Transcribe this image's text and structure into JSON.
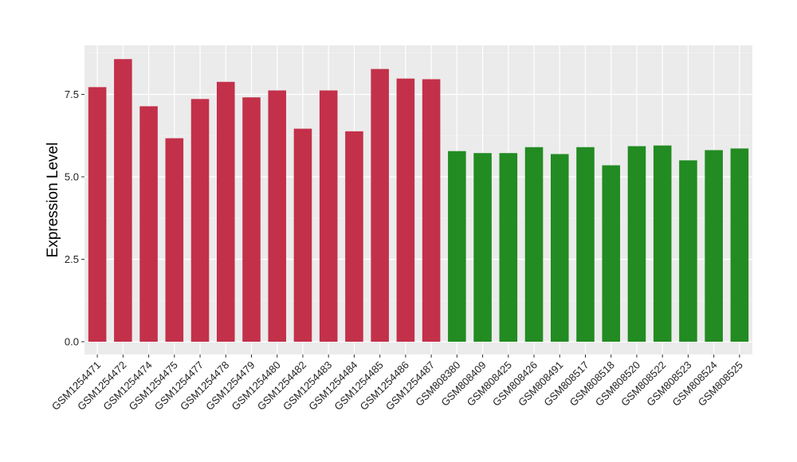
{
  "chart_data": {
    "type": "bar",
    "title": "",
    "xlabel": "",
    "ylabel": "Expression Level",
    "ylim": [
      0,
      8.9
    ],
    "yticks": [
      0.0,
      2.5,
      5.0,
      7.5
    ],
    "ytick_labels": [
      "0.0",
      "2.5",
      "5.0",
      "7.5"
    ],
    "grid": true,
    "background": "#ebebeb",
    "categories": [
      "GSM1254471",
      "GSM1254472",
      "GSM1254474",
      "GSM1254475",
      "GSM1254477",
      "GSM1254478",
      "GSM1254479",
      "GSM1254480",
      "GSM1254482",
      "GSM1254483",
      "GSM1254484",
      "GSM1254485",
      "GSM1254486",
      "GSM1254487",
      "GSM808380",
      "GSM808409",
      "GSM808425",
      "GSM808426",
      "GSM808491",
      "GSM808517",
      "GSM808518",
      "GSM808520",
      "GSM808522",
      "GSM808523",
      "GSM808524",
      "GSM808525"
    ],
    "values": [
      7.72,
      8.57,
      7.14,
      6.17,
      7.36,
      7.88,
      7.41,
      7.62,
      6.46,
      7.62,
      6.38,
      8.27,
      7.98,
      7.96,
      5.78,
      5.72,
      5.72,
      5.9,
      5.69,
      5.9,
      5.35,
      5.93,
      5.95,
      5.5,
      5.81,
      5.86
    ],
    "bar_colors": [
      "#c3304a",
      "#c3304a",
      "#c3304a",
      "#c3304a",
      "#c3304a",
      "#c3304a",
      "#c3304a",
      "#c3304a",
      "#c3304a",
      "#c3304a",
      "#c3304a",
      "#c3304a",
      "#c3304a",
      "#c3304a",
      "#228b22",
      "#228b22",
      "#228b22",
      "#228b22",
      "#228b22",
      "#228b22",
      "#228b22",
      "#228b22",
      "#228b22",
      "#228b22",
      "#228b22",
      "#228b22"
    ]
  }
}
